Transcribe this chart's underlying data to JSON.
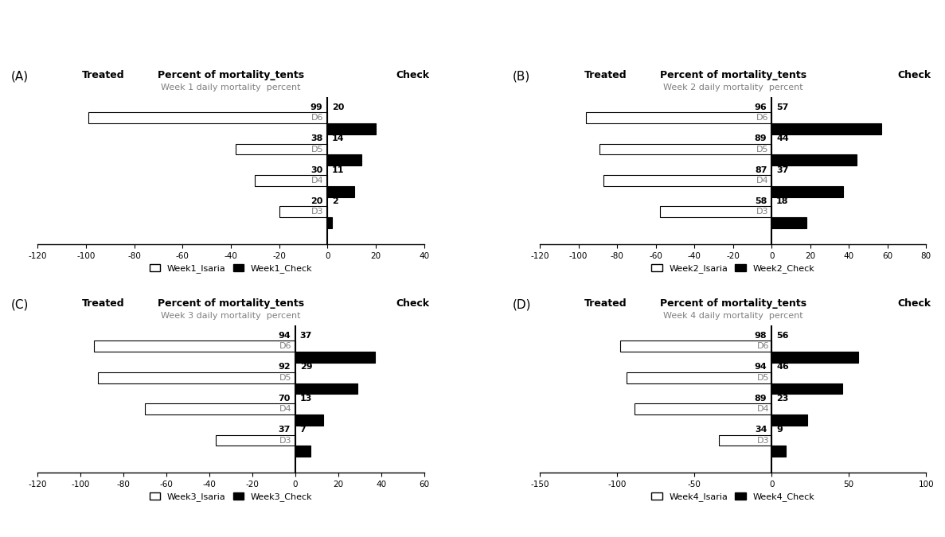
{
  "panels": [
    {
      "label": "(A)",
      "title": "Percent of mortality_tents",
      "subtitle": "Week 1 daily mortality  percent",
      "categories": [
        "D6",
        "D5",
        "D4",
        "D3"
      ],
      "isaria_values": [
        -99,
        -38,
        -30,
        -20
      ],
      "check_values": [
        20,
        14,
        11,
        2
      ],
      "isaria_labels": [
        99,
        38,
        30,
        20
      ],
      "check_labels": [
        20,
        14,
        11,
        2
      ],
      "xlim": [
        -120,
        40
      ],
      "xticks": [
        -120,
        -100,
        -80,
        -60,
        -40,
        -20,
        0,
        20,
        40
      ],
      "legend_isaria": "Week1_Isaria",
      "legend_check": "Week1_Check"
    },
    {
      "label": "(B)",
      "title": "Percent of mortality_tents",
      "subtitle": "Week 2 daily mortality  percent",
      "categories": [
        "D6",
        "D5",
        "D4",
        "D3"
      ],
      "isaria_values": [
        -96,
        -89,
        -87,
        -58
      ],
      "check_values": [
        57,
        44,
        37,
        18
      ],
      "isaria_labels": [
        96,
        89,
        87,
        58
      ],
      "check_labels": [
        57,
        44,
        37,
        18
      ],
      "xlim": [
        -120,
        80
      ],
      "xticks": [
        -120,
        -100,
        -80,
        -60,
        -40,
        -20,
        0,
        20,
        40,
        60,
        80
      ],
      "legend_isaria": "Week2_Isaria",
      "legend_check": "Week2_Check"
    },
    {
      "label": "(C)",
      "title": "Percent of mortality_tents",
      "subtitle": "Week 3 daily mortality  percent",
      "categories": [
        "D6",
        "D5",
        "D4",
        "D3"
      ],
      "isaria_values": [
        -94,
        -92,
        -70,
        -37
      ],
      "check_values": [
        37,
        29,
        13,
        7
      ],
      "isaria_labels": [
        94,
        92,
        70,
        37
      ],
      "check_labels": [
        37,
        29,
        13,
        7
      ],
      "xlim": [
        -120,
        60
      ],
      "xticks": [
        -120,
        -100,
        -80,
        -60,
        -40,
        -20,
        0,
        20,
        40,
        60
      ],
      "legend_isaria": "Week3_Isaria",
      "legend_check": "Week3_Check"
    },
    {
      "label": "(D)",
      "title": "Percent of mortality_tents",
      "subtitle": "Week 4 daily mortality  percent",
      "categories": [
        "D6",
        "D5",
        "D4",
        "D3"
      ],
      "isaria_values": [
        -98,
        -94,
        -89,
        -34
      ],
      "check_values": [
        56,
        46,
        23,
        9
      ],
      "isaria_labels": [
        98,
        94,
        89,
        34
      ],
      "check_labels": [
        56,
        46,
        23,
        9
      ],
      "xlim": [
        -150,
        100
      ],
      "xticks": [
        -150,
        -100,
        -50,
        0,
        50,
        100
      ],
      "legend_isaria": "Week4_Isaria",
      "legend_check": "Week4_Check"
    }
  ],
  "bar_color_isaria": "white",
  "bar_color_check": "black",
  "bar_edgecolor": "black",
  "background_color": "white"
}
